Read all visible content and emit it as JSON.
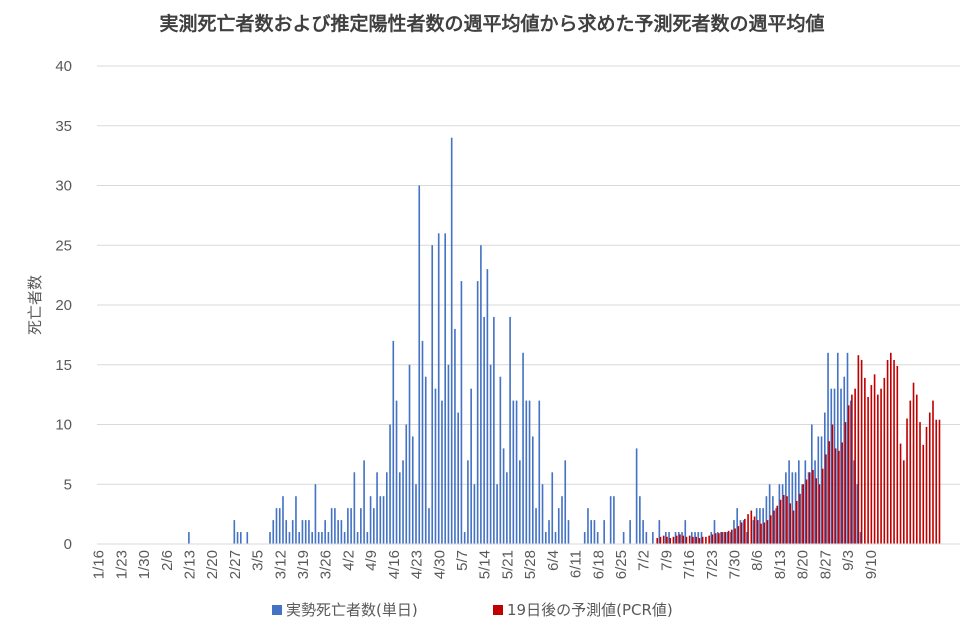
{
  "chart_data": {
    "type": "bar",
    "title": "実測死亡者数および推定陽性者数の週平均値から求めた予測死者数の週平均値",
    "xlabel": "",
    "ylabel": "死亡者数",
    "ylim": [
      0,
      40
    ],
    "yticks": [
      0,
      5,
      10,
      15,
      20,
      25,
      30,
      35,
      40
    ],
    "grid": true,
    "legend_position": "bottom",
    "x_start": "1/16",
    "x_end": "9/12",
    "x_tick_labels": [
      "1/16",
      "1/23",
      "1/30",
      "2/6",
      "2/13",
      "2/20",
      "2/27",
      "3/5",
      "3/12",
      "3/19",
      "3/26",
      "4/2",
      "4/9",
      "4/16",
      "4/23",
      "4/30",
      "5/7",
      "5/14",
      "5/21",
      "5/28",
      "6/4",
      "6/11",
      "6/18",
      "6/25",
      "7/2",
      "7/9",
      "7/16",
      "7/23",
      "7/30",
      "8/6",
      "8/13",
      "8/20",
      "8/27",
      "9/3",
      "9/10"
    ],
    "series": [
      {
        "name": "実勢死亡者数(単日)",
        "color": "#4472C4",
        "values": [
          0,
          0,
          0,
          0,
          0,
          0,
          0,
          0,
          0,
          0,
          0,
          0,
          0,
          0,
          0,
          0,
          0,
          0,
          0,
          0,
          0,
          0,
          0,
          0,
          0,
          0,
          0,
          0,
          1,
          0,
          0,
          0,
          0,
          0,
          0,
          0,
          0,
          0,
          0,
          0,
          0,
          0,
          2,
          1,
          1,
          0,
          1,
          0,
          0,
          0,
          0,
          0,
          0,
          1,
          2,
          3,
          3,
          4,
          2,
          1,
          2,
          4,
          1,
          2,
          2,
          2,
          1,
          5,
          1,
          1,
          2,
          1,
          3,
          3,
          2,
          2,
          1,
          3,
          3,
          6,
          1,
          3,
          7,
          1,
          4,
          3,
          6,
          4,
          4,
          6,
          10,
          17,
          12,
          6,
          7,
          10,
          15,
          9,
          5,
          30,
          17,
          14,
          3,
          25,
          13,
          26,
          12,
          26,
          15,
          34,
          18,
          11,
          22,
          1,
          7,
          13,
          5,
          22,
          25,
          19,
          23,
          15,
          19,
          5,
          14,
          8,
          6,
          19,
          12,
          12,
          7,
          16,
          12,
          12,
          9,
          3,
          12,
          5,
          1,
          2,
          6,
          1,
          3,
          4,
          7,
          2,
          0,
          0,
          0,
          0,
          1,
          3,
          2,
          2,
          1,
          0,
          2,
          0,
          4,
          4,
          0,
          0,
          1,
          0,
          2,
          0,
          8,
          4,
          2,
          1,
          0,
          1,
          0,
          2,
          0,
          1,
          1,
          0,
          1,
          1,
          1,
          2,
          0,
          1,
          1,
          1,
          1,
          0,
          0,
          1,
          2,
          1,
          1,
          1,
          1,
          1,
          2,
          3,
          2,
          2,
          1,
          0,
          2,
          3,
          3,
          3,
          4,
          5,
          4,
          3,
          5,
          5,
          6,
          7,
          6,
          6,
          7,
          5,
          7,
          6,
          10,
          7,
          9,
          9,
          11,
          16,
          13,
          13,
          16,
          13,
          14,
          16,
          12,
          7,
          5,
          1,
          0,
          0,
          0,
          0,
          0,
          0,
          0,
          0,
          0,
          0,
          0,
          0,
          0,
          0,
          0,
          0,
          0,
          0,
          0,
          0,
          0,
          0,
          0,
          0,
          0,
          0,
          0,
          0,
          0,
          0
        ]
      },
      {
        "name": "19日後の予測値(PCR値)",
        "color": "#C00000",
        "values": [
          0,
          0,
          0,
          0,
          0,
          0,
          0,
          0,
          0,
          0,
          0,
          0,
          0,
          0,
          0,
          0,
          0,
          0,
          0,
          0,
          0,
          0,
          0,
          0,
          0,
          0,
          0,
          0,
          0,
          0,
          0,
          0,
          0,
          0,
          0,
          0,
          0,
          0,
          0,
          0,
          0,
          0,
          0,
          0,
          0,
          0,
          0,
          0,
          0,
          0,
          0,
          0,
          0,
          0,
          0,
          0,
          0,
          0,
          0,
          0,
          0,
          0,
          0,
          0,
          0,
          0,
          0,
          0,
          0,
          0,
          0,
          0,
          0,
          0,
          0,
          0,
          0,
          0,
          0,
          0,
          0,
          0,
          0,
          0,
          0,
          0,
          0,
          0,
          0,
          0,
          0,
          0,
          0,
          0,
          0,
          0,
          0,
          0,
          0,
          0,
          0,
          0,
          0,
          0,
          0,
          0,
          0,
          0,
          0,
          0,
          0,
          0,
          0,
          0,
          0,
          0,
          0,
          0,
          0,
          0,
          0,
          0,
          0,
          0,
          0,
          0,
          0,
          0,
          0,
          0,
          0,
          0,
          0,
          0,
          0,
          0,
          0,
          0,
          0,
          0,
          0,
          0,
          0,
          0,
          0,
          0,
          0,
          0,
          0,
          0,
          0,
          0,
          0,
          0,
          0,
          0,
          0,
          0,
          0,
          0,
          0,
          0,
          0,
          0,
          0,
          0,
          0,
          0,
          0,
          0,
          0,
          0,
          0.5,
          0.6,
          0.7,
          0.6,
          0.5,
          0.6,
          0.7,
          0.8,
          0.7,
          0.6,
          0.7,
          0.6,
          0.6,
          0.5,
          0.6,
          0.6,
          0.7,
          0.8,
          0.9,
          0.9,
          1.0,
          1.0,
          1.1,
          1.2,
          1.3,
          1.5,
          1.8,
          2.1,
          2.5,
          2.8,
          2.3,
          2.0,
          1.7,
          1.8,
          2.0,
          2.4,
          2.8,
          3.2,
          3.7,
          4.1,
          4.0,
          3.4,
          2.8,
          3.6,
          4.2,
          5.0,
          5.4,
          6.0,
          6.2,
          5.5,
          5.0,
          6.3,
          7.5,
          8.6,
          10.0,
          8.0,
          7.8,
          8.5,
          10.2,
          11.6,
          12.5,
          13.0,
          15.8,
          15.4,
          13.9,
          12.3,
          13.3,
          14.2,
          12.5,
          13.0,
          13.9,
          15.4,
          16.0,
          15.4,
          14.9,
          8.4,
          7.0,
          10.5,
          12.0,
          13.5,
          12.5,
          10.2,
          8.3,
          9.8,
          11.0,
          12.0,
          10.4,
          10.4
        ]
      }
    ]
  }
}
